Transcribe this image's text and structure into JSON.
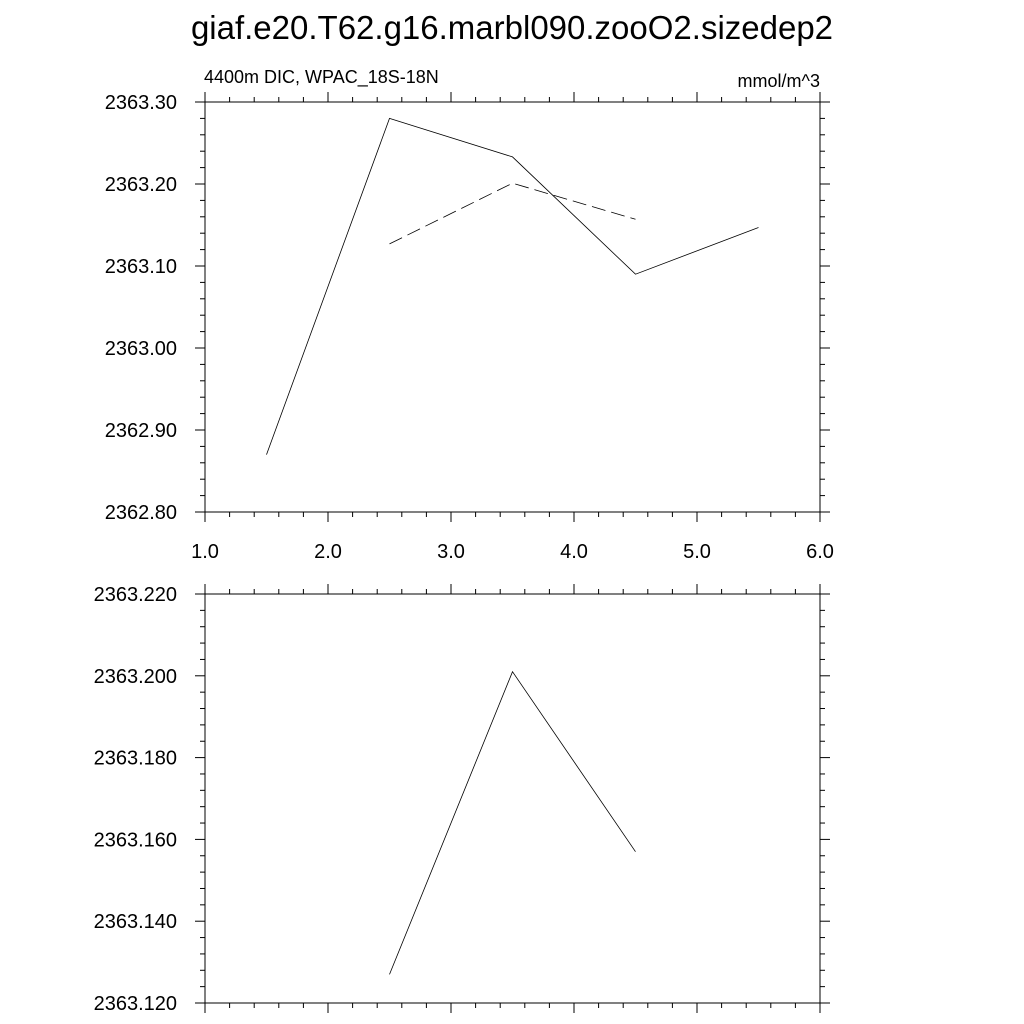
{
  "title": "giaf.e20.T62.g16.marbl090.zooO2.sizedep2",
  "subtitle_left": "4400m DIC, WPAC_18S-18N",
  "subtitle_right": "mmol/m^3",
  "chart_data": [
    {
      "type": "line",
      "title": "",
      "xlabel": "",
      "ylabel": "",
      "xlim": [
        1.0,
        6.0
      ],
      "ylim": [
        2362.8,
        2363.3
      ],
      "x_ticks": [
        "1.0",
        "2.0",
        "3.0",
        "4.0",
        "5.0",
        "6.0"
      ],
      "y_ticks": [
        "2362.80",
        "2362.90",
        "2363.00",
        "2363.10",
        "2363.20",
        "2363.30"
      ],
      "grid": false,
      "series": [
        {
          "style": "solid",
          "x": [
            1.5,
            2.5,
            3.5,
            4.5,
            5.5
          ],
          "y": [
            2362.87,
            2363.28,
            2363.233,
            2363.09,
            2363.147
          ]
        },
        {
          "style": "dashed",
          "x": [
            2.5,
            3.5,
            4.5
          ],
          "y": [
            2363.127,
            2363.201,
            2363.157
          ]
        }
      ]
    },
    {
      "type": "line",
      "title": "",
      "xlabel": "",
      "ylabel": "",
      "xlim": [
        1.0,
        6.0
      ],
      "ylim": [
        2363.12,
        2363.22
      ],
      "x_ticks": [],
      "y_ticks": [
        "2363.120",
        "2363.140",
        "2363.160",
        "2363.180",
        "2363.200",
        "2363.220"
      ],
      "grid": false,
      "series": [
        {
          "style": "solid",
          "x": [
            2.5,
            3.5,
            4.5
          ],
          "y": [
            2363.127,
            2363.201,
            2363.157
          ]
        }
      ]
    }
  ]
}
